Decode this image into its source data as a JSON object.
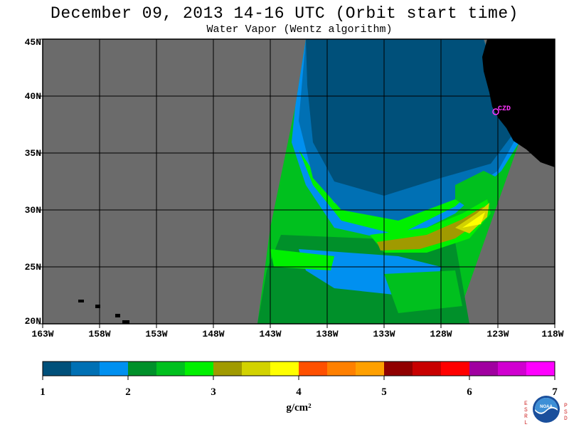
{
  "header": {
    "title": "December 09, 2013  14-16 UTC  (Orbit start time)",
    "subtitle": "Water Vapor (Wentz algorithm)"
  },
  "map": {
    "lat_labels": [
      "45N",
      "40N",
      "35N",
      "30N",
      "25N",
      "20N"
    ],
    "lon_labels": [
      "163W",
      "158W",
      "153W",
      "148W",
      "143W",
      "138W",
      "133W",
      "128W",
      "123W",
      "118W"
    ],
    "station_label": "CZD",
    "lat_range": [
      20,
      45
    ],
    "lon_range": [
      -163,
      -118
    ],
    "background_color": "#6b6b6b",
    "land_color": "#000000",
    "station_color": "#ff33ff"
  },
  "colorbar": {
    "ticks": [
      "1",
      "2",
      "3",
      "4",
      "5",
      "6",
      "7"
    ],
    "units": "g/cm²",
    "colors": [
      "#00507a",
      "#0070b4",
      "#0090f0",
      "#00902a",
      "#00c01e",
      "#00f000",
      "#a09a00",
      "#d2d200",
      "#ffff00",
      "#ff5000",
      "#ff8000",
      "#ffa000",
      "#900000",
      "#c80000",
      "#ff0000",
      "#a000a0",
      "#d000d0",
      "#ff00ff"
    ]
  },
  "logo": {
    "left_letters": "ESRL",
    "right_letters": "PSD",
    "center_text": "NOAA"
  }
}
